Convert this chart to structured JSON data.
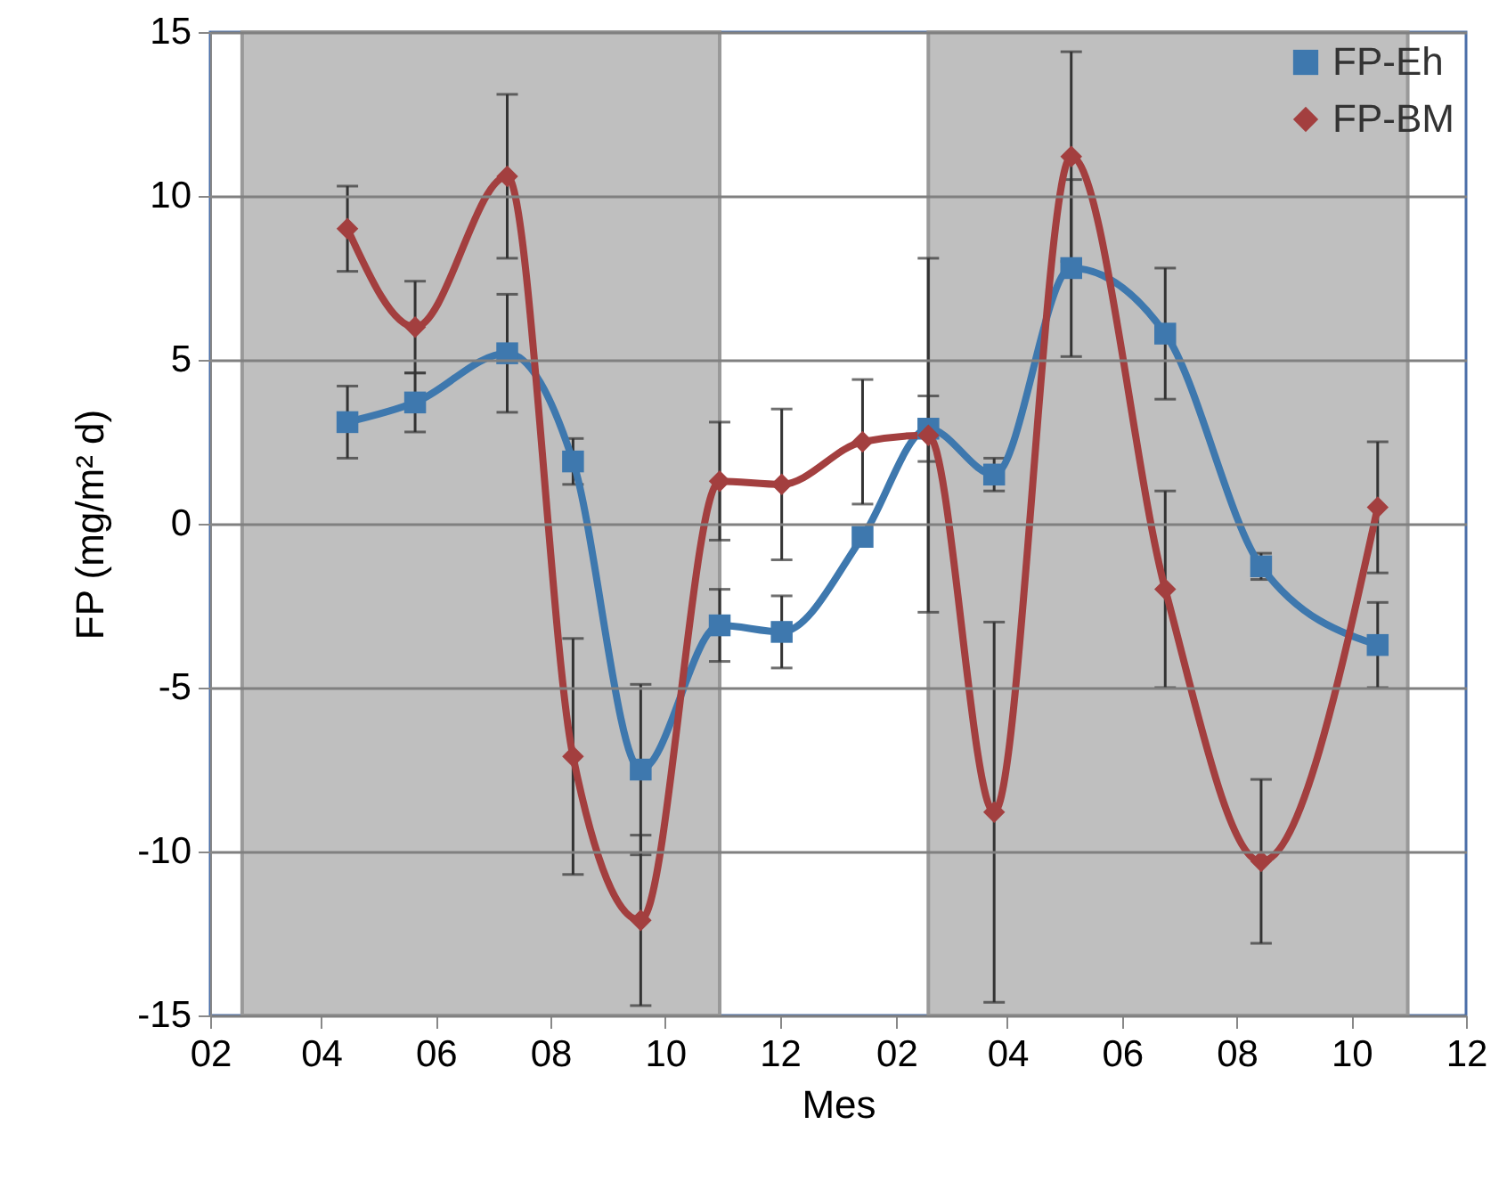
{
  "chart_data": {
    "type": "line",
    "xlabel": "Mes",
    "ylabel": "FP (mg/m² d)",
    "xlim": [
      "2001-02-01",
      "2002-12-01"
    ],
    "ylim": [
      -15,
      15
    ],
    "xticks": [
      {
        "value": "2001-02-01",
        "label": "02"
      },
      {
        "value": "2001-04-01",
        "label": "04"
      },
      {
        "value": "2001-06-01",
        "label": "06"
      },
      {
        "value": "2001-08-01",
        "label": "08"
      },
      {
        "value": "2001-10-01",
        "label": "10"
      },
      {
        "value": "2001-12-01",
        "label": "12"
      },
      {
        "value": "2002-02-01",
        "label": "02"
      },
      {
        "value": "2002-04-01",
        "label": "04"
      },
      {
        "value": "2002-06-01",
        "label": "06"
      },
      {
        "value": "2002-08-01",
        "label": "08"
      },
      {
        "value": "2002-10-01",
        "label": "10"
      },
      {
        "value": "2002-12-01",
        "label": "12"
      }
    ],
    "yticks": [
      -15,
      -10,
      -5,
      0,
      5,
      10,
      15
    ],
    "x": [
      "2001-04-15",
      "2001-05-21",
      "2001-07-09",
      "2001-08-13",
      "2001-09-18",
      "2001-10-30",
      "2001-12-02",
      "2002-01-14",
      "2002-02-18",
      "2002-03-25",
      "2002-05-05",
      "2002-06-24",
      "2002-08-14",
      "2002-10-15"
    ],
    "series": [
      {
        "name": "FP-Eh",
        "color": "#3e78ae",
        "marker": "square",
        "line_style": "solid",
        "values": [
          3.1,
          3.7,
          5.2,
          1.9,
          -7.5,
          -3.1,
          -3.3,
          -0.4,
          2.9,
          1.5,
          7.8,
          5.8,
          -1.3,
          -3.7
        ],
        "errors": [
          1.1,
          0.9,
          1.8,
          0.7,
          2.6,
          1.1,
          1.1,
          null,
          1.0,
          0.5,
          2.7,
          2.0,
          0.4,
          1.3
        ]
      },
      {
        "name": "FP-BM",
        "color": "#a33f3f",
        "marker": "diamond",
        "line_style": "solid",
        "values": [
          9.0,
          6.0,
          10.6,
          -7.1,
          -12.1,
          1.3,
          1.2,
          2.5,
          2.7,
          -8.8,
          11.2,
          -2.0,
          -10.3,
          0.5
        ],
        "errors": [
          1.3,
          1.4,
          2.5,
          3.6,
          2.6,
          1.8,
          2.3,
          1.9,
          5.4,
          5.8,
          3.2,
          3.0,
          2.5,
          2.0
        ]
      }
    ],
    "bands": [
      {
        "axis": "x",
        "from": "2001-02-18",
        "to": "2001-10-30",
        "color": "#bfbfbf"
      },
      {
        "axis": "x",
        "from": "2002-02-18",
        "to": "2002-10-31",
        "color": "#bfbfbf"
      }
    ],
    "grid": "y",
    "legend": "top right"
  }
}
